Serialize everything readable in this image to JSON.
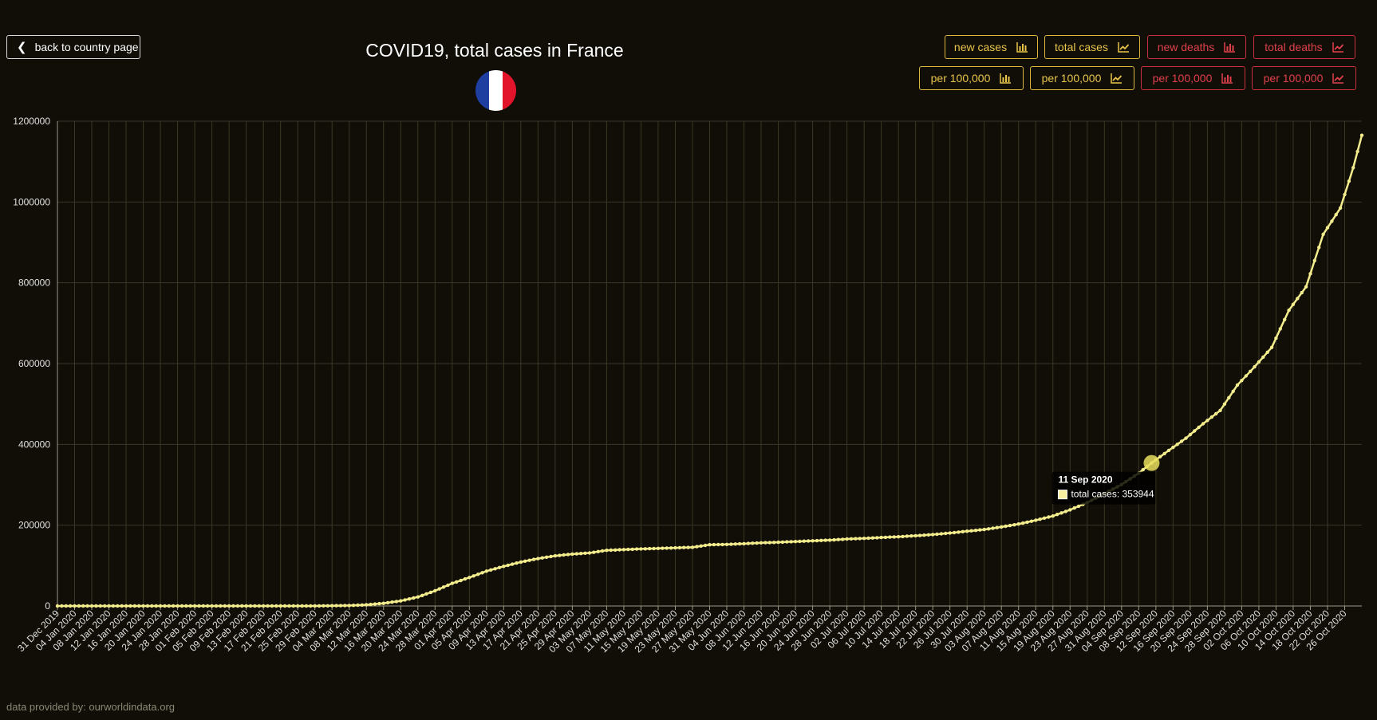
{
  "header": {
    "back_label": "back to country page",
    "title": "COVID19, total cases in France"
  },
  "controls": {
    "row1": [
      {
        "label": "new cases",
        "icon": "bar-chart-icon",
        "color": "yellow"
      },
      {
        "label": "total cases",
        "icon": "line-chart-icon",
        "color": "yellow"
      },
      {
        "label": "new deaths",
        "icon": "bar-chart-icon",
        "color": "red"
      },
      {
        "label": "total deaths",
        "icon": "line-chart-icon",
        "color": "red"
      }
    ],
    "row2": [
      {
        "label": "per 100,000",
        "icon": "bar-chart-icon",
        "color": "yellow"
      },
      {
        "label": "per 100,000",
        "icon": "line-chart-icon",
        "color": "yellow"
      },
      {
        "label": "per 100,000",
        "icon": "bar-chart-icon",
        "color": "red"
      },
      {
        "label": "per 100,000",
        "icon": "line-chart-icon",
        "color": "red"
      }
    ]
  },
  "colors": {
    "background": "#110e07",
    "line": "#f3ec8c",
    "accent_yellow": "#e9c54a",
    "accent_red": "#e0404b",
    "flag_blue": "#1f3fa0",
    "flag_white": "#ffffff",
    "flag_red": "#e1142c"
  },
  "tooltip": {
    "date": "11 Sep 2020",
    "label": "total cases: 353944",
    "x": "11 Sep 2020",
    "value": 353944
  },
  "footer": {
    "credit": "data provided by: ourworldindata.org"
  },
  "chart_data": {
    "type": "line",
    "title": "COVID19, total cases in France",
    "series": [
      {
        "name": "total cases"
      }
    ],
    "x_start": "31 Dec 2019",
    "x_end": "30 Oct 2020",
    "x_ticks": [
      "31 Dec 2019",
      "04 Jan 2020",
      "08 Jan 2020",
      "12 Jan 2020",
      "16 Jan 2020",
      "20 Jan 2020",
      "24 Jan 2020",
      "28 Jan 2020",
      "01 Feb 2020",
      "05 Feb 2020",
      "09 Feb 2020",
      "13 Feb 2020",
      "17 Feb 2020",
      "21 Feb 2020",
      "25 Feb 2020",
      "29 Feb 2020",
      "04 Mar 2020",
      "08 Mar 2020",
      "12 Mar 2020",
      "16 Mar 2020",
      "20 Mar 2020",
      "24 Mar 2020",
      "28 Mar 2020",
      "01 Apr 2020",
      "05 Apr 2020",
      "09 Apr 2020",
      "13 Apr 2020",
      "17 Apr 2020",
      "21 Apr 2020",
      "25 Apr 2020",
      "29 Apr 2020",
      "03 May 2020",
      "07 May 2020",
      "11 May 2020",
      "15 May 2020",
      "19 May 2020",
      "23 May 2020",
      "27 May 2020",
      "31 May 2020",
      "04 Jun 2020",
      "08 Jun 2020",
      "12 Jun 2020",
      "16 Jun 2020",
      "20 Jun 2020",
      "24 Jun 2020",
      "28 Jun 2020",
      "02 Jul 2020",
      "06 Jul 2020",
      "10 Jul 2020",
      "14 Jul 2020",
      "18 Jul 2020",
      "22 Jul 2020",
      "26 Jul 2020",
      "30 Jul 2020",
      "03 Aug 2020",
      "07 Aug 2020",
      "11 Aug 2020",
      "15 Aug 2020",
      "19 Aug 2020",
      "23 Aug 2020",
      "27 Aug 2020",
      "31 Aug 2020",
      "04 Sep 2020",
      "08 Sep 2020",
      "12 Sep 2020",
      "16 Sep 2020",
      "20 Sep 2020",
      "24 Sep 2020",
      "28 Sep 2020",
      "02 Oct 2020",
      "06 Oct 2020",
      "10 Oct 2020",
      "14 Oct 2020",
      "18 Oct 2020",
      "22 Oct 2020",
      "26 Oct 2020"
    ],
    "y_ticks": [
      "0",
      "200000",
      "400000",
      "600000",
      "800000",
      "1000000",
      "1200000"
    ],
    "ylim": [
      0,
      1200000
    ],
    "grid": true,
    "anchors": [
      {
        "date": "31 Dec 2019",
        "y": 0
      },
      {
        "date": "29 Feb 2020",
        "y": 100
      },
      {
        "date": "08 Mar 2020",
        "y": 1100
      },
      {
        "date": "12 Mar 2020",
        "y": 2900
      },
      {
        "date": "16 Mar 2020",
        "y": 6600
      },
      {
        "date": "20 Mar 2020",
        "y": 12600
      },
      {
        "date": "24 Mar 2020",
        "y": 22300
      },
      {
        "date": "28 Mar 2020",
        "y": 37600
      },
      {
        "date": "01 Apr 2020",
        "y": 56000
      },
      {
        "date": "05 Apr 2020",
        "y": 70500
      },
      {
        "date": "09 Apr 2020",
        "y": 86300
      },
      {
        "date": "13 Apr 2020",
        "y": 98000
      },
      {
        "date": "17 Apr 2020",
        "y": 108800
      },
      {
        "date": "21 Apr 2020",
        "y": 117300
      },
      {
        "date": "25 Apr 2020",
        "y": 124100
      },
      {
        "date": "29 Apr 2020",
        "y": 128400
      },
      {
        "date": "03 May 2020",
        "y": 131300
      },
      {
        "date": "07 May 2020",
        "y": 137800
      },
      {
        "date": "11 May 2020",
        "y": 139500
      },
      {
        "date": "15 May 2020",
        "y": 141300
      },
      {
        "date": "19 May 2020",
        "y": 142500
      },
      {
        "date": "23 May 2020",
        "y": 143900
      },
      {
        "date": "27 May 2020",
        "y": 145300
      },
      {
        "date": "31 May 2020",
        "y": 151500
      },
      {
        "date": "04 Jun 2020",
        "y": 152400
      },
      {
        "date": "08 Jun 2020",
        "y": 154200
      },
      {
        "date": "12 Jun 2020",
        "y": 156300
      },
      {
        "date": "16 Jun 2020",
        "y": 157700
      },
      {
        "date": "20 Jun 2020",
        "y": 159500
      },
      {
        "date": "24 Jun 2020",
        "y": 161300
      },
      {
        "date": "28 Jun 2020",
        "y": 163000
      },
      {
        "date": "02 Jul 2020",
        "y": 165700
      },
      {
        "date": "06 Jul 2020",
        "y": 167300
      },
      {
        "date": "10 Jul 2020",
        "y": 169500
      },
      {
        "date": "14 Jul 2020",
        "y": 171400
      },
      {
        "date": "18 Jul 2020",
        "y": 173800
      },
      {
        "date": "22 Jul 2020",
        "y": 176800
      },
      {
        "date": "26 Jul 2020",
        "y": 180500
      },
      {
        "date": "30 Jul 2020",
        "y": 185200
      },
      {
        "date": "03 Aug 2020",
        "y": 189200
      },
      {
        "date": "07 Aug 2020",
        "y": 195600
      },
      {
        "date": "11 Aug 2020",
        "y": 202800
      },
      {
        "date": "15 Aug 2020",
        "y": 212200
      },
      {
        "date": "19 Aug 2020",
        "y": 222700
      },
      {
        "date": "23 Aug 2020",
        "y": 238000
      },
      {
        "date": "27 Aug 2020",
        "y": 256000
      },
      {
        "date": "31 Aug 2020",
        "y": 277900
      },
      {
        "date": "04 Sep 2020",
        "y": 300500
      },
      {
        "date": "08 Sep 2020",
        "y": 328900
      },
      {
        "date": "11 Sep 2020",
        "y": 353944
      },
      {
        "date": "15 Sep 2020",
        "y": 385000
      },
      {
        "date": "19 Sep 2020",
        "y": 415300
      },
      {
        "date": "23 Sep 2020",
        "y": 451000
      },
      {
        "date": "27 Sep 2020",
        "y": 484000
      },
      {
        "date": "01 Oct 2020",
        "y": 547000
      },
      {
        "date": "05 Oct 2020",
        "y": 592000
      },
      {
        "date": "09 Oct 2020",
        "y": 640000
      },
      {
        "date": "13 Oct 2020",
        "y": 732000
      },
      {
        "date": "17 Oct 2020",
        "y": 790000
      },
      {
        "date": "21 Oct 2020",
        "y": 920000
      },
      {
        "date": "25 Oct 2020",
        "y": 985000
      },
      {
        "date": "28 Oct 2020",
        "y": 1085000
      },
      {
        "date": "30 Oct 2020",
        "y": 1165000
      }
    ]
  }
}
